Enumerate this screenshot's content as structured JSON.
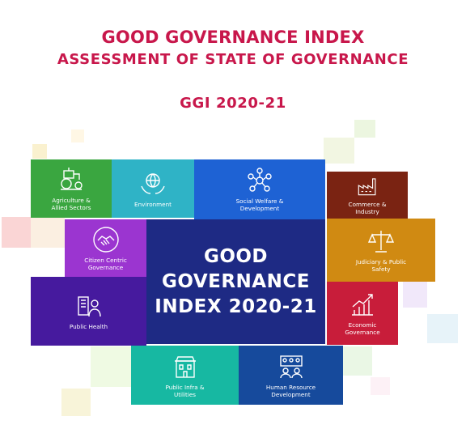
{
  "header": {
    "title": "GOOD GOVERNANCE INDEX",
    "subtitle": "ASSESSMENT OF STATE OF GOVERNANCE",
    "edition": "GGI 2020-21"
  },
  "center_label": "GOOD\nGOVERNANCE\nINDEX 2020-21",
  "sectors": [
    {
      "label": "Agriculture &\nAllied Sectors",
      "color": "#3aa640",
      "icon": "tractor-icon"
    },
    {
      "label": "Environment",
      "color": "#2fb3c6",
      "icon": "globe-hands-icon"
    },
    {
      "label": "Social Welfare &\nDevelopment",
      "color": "#1e62d4",
      "icon": "social-network-icon"
    },
    {
      "label": "Commerce &\nIndustry",
      "color": "#7a2312",
      "icon": "factory-icon"
    },
    {
      "label": "Citizen Centric\nGovernance",
      "color": "#9b35d0",
      "icon": "handshake-icon"
    },
    {
      "label": "Judiciary & Public\nSafety",
      "color": "#d08a12",
      "icon": "scales-icon"
    },
    {
      "label": "Public Health",
      "color": "#461a9e",
      "icon": "health-icon"
    },
    {
      "label": "Economic\nGovernance",
      "color": "#c81d3a",
      "icon": "growth-chart-icon"
    },
    {
      "label": "Public Infra &\nUtilities",
      "color": "#17b8a2",
      "icon": "building-icon"
    },
    {
      "label": "Human Resource\nDevelopment",
      "color": "#164a9c",
      "icon": "team-icon"
    }
  ],
  "colors": {
    "accent": "#c8174b",
    "center_bg": "#1e2a84"
  }
}
